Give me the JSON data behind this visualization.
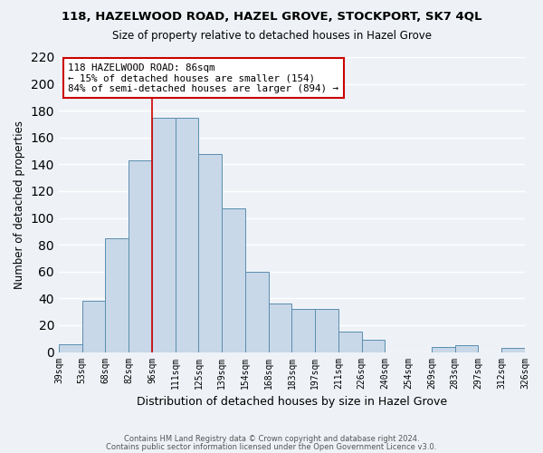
{
  "title": "118, HAZELWOOD ROAD, HAZEL GROVE, STOCKPORT, SK7 4QL",
  "subtitle": "Size of property relative to detached houses in Hazel Grove",
  "xlabel": "Distribution of detached houses by size in Hazel Grove",
  "ylabel": "Number of detached properties",
  "bar_color": "#c8d8e8",
  "bar_edge_color": "#5b8db0",
  "tick_labels": [
    "39sqm",
    "53sqm",
    "68sqm",
    "82sqm",
    "96sqm",
    "111sqm",
    "125sqm",
    "139sqm",
    "154sqm",
    "168sqm",
    "183sqm",
    "197sqm",
    "211sqm",
    "226sqm",
    "240sqm",
    "254sqm",
    "269sqm",
    "283sqm",
    "297sqm",
    "312sqm",
    "326sqm"
  ],
  "values": [
    6,
    38,
    85,
    143,
    175,
    175,
    148,
    107,
    60,
    36,
    32,
    32,
    15,
    9,
    0,
    0,
    4,
    5,
    0,
    3
  ],
  "ylim": [
    0,
    220
  ],
  "yticks": [
    0,
    20,
    40,
    60,
    80,
    100,
    120,
    140,
    160,
    180,
    200,
    220
  ],
  "property_line_x": 3.5,
  "annotation_title": "118 HAZELWOOD ROAD: 86sqm",
  "annotation_line1": "← 15% of detached houses are smaller (154)",
  "annotation_line2": "84% of semi-detached houses are larger (894) →",
  "annotation_box_color": "#ffffff",
  "annotation_box_edge": "#cc0000",
  "vline_color": "#cc0000",
  "footer1": "Contains HM Land Registry data © Crown copyright and database right 2024.",
  "footer2": "Contains public sector information licensed under the Open Government Licence v3.0.",
  "background_color": "#eef2f7"
}
